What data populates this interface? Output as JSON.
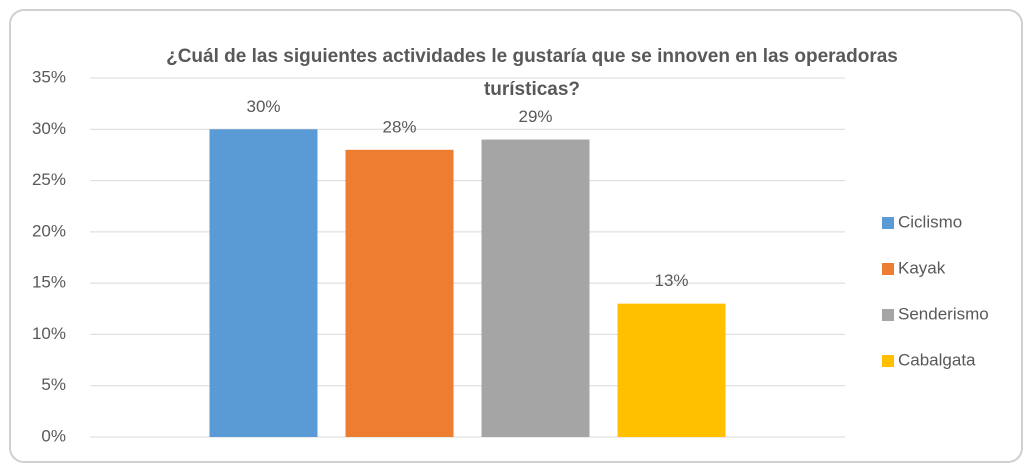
{
  "chart_data": {
    "type": "bar",
    "title": "¿Cuál de las siguientes actividades le gustaría que se innoven en las operadoras turísticas?",
    "categories": [
      null
    ],
    "series": [
      {
        "name": "Ciclismo",
        "color": "#5b9bd5",
        "values": [
          30
        ],
        "value_labels": [
          "30%"
        ]
      },
      {
        "name": "Kayak",
        "color": "#ed7d31",
        "values": [
          28
        ],
        "value_labels": [
          "28%"
        ]
      },
      {
        "name": "Senderismo",
        "color": "#a5a5a5",
        "values": [
          29
        ],
        "value_labels": [
          "29%"
        ]
      },
      {
        "name": "Cabalgata",
        "color": "#ffc000",
        "values": [
          13
        ],
        "value_labels": [
          "13%"
        ]
      }
    ],
    "ylim": [
      0,
      35
    ],
    "yticks": [
      {
        "value": 0,
        "label": "0%"
      },
      {
        "value": 5,
        "label": "5%"
      },
      {
        "value": 10,
        "label": "10%"
      },
      {
        "value": 15,
        "label": "15%"
      },
      {
        "value": 20,
        "label": "20%"
      },
      {
        "value": 25,
        "label": "25%"
      },
      {
        "value": 30,
        "label": "30%"
      },
      {
        "value": 35,
        "label": "35%"
      }
    ],
    "grid": true,
    "legend": "right"
  }
}
